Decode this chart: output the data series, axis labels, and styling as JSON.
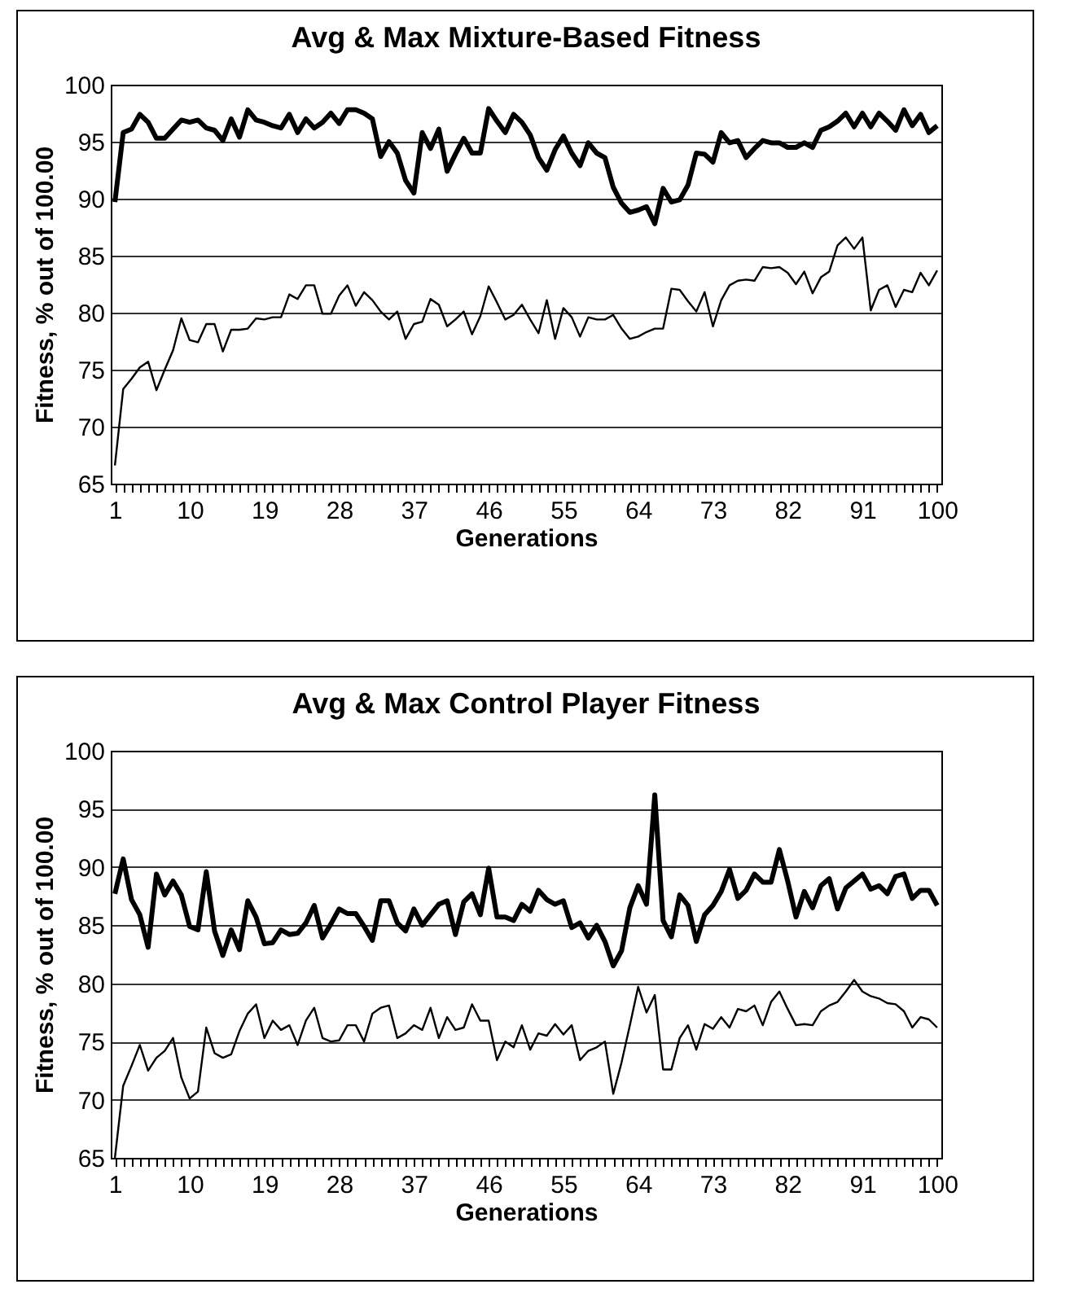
{
  "chart_data": [
    {
      "type": "line",
      "title": "Avg & Max Mixture-Based Fitness",
      "xlabel": "Generations",
      "ylabel": "Fitness, % out of 100.00",
      "categories": [
        "1",
        null,
        null,
        null,
        null,
        null,
        null,
        null,
        null,
        "10",
        null,
        null,
        null,
        null,
        null,
        null,
        null,
        null,
        "19",
        null,
        null,
        null,
        null,
        null,
        null,
        null,
        null,
        "28",
        null,
        null,
        null,
        null,
        null,
        null,
        null,
        null,
        "37",
        null,
        null,
        null,
        null,
        null,
        null,
        null,
        null,
        "46",
        null,
        null,
        null,
        null,
        null,
        null,
        null,
        null,
        "55",
        null,
        null,
        null,
        null,
        null,
        null,
        null,
        null,
        "64",
        null,
        null,
        null,
        null,
        null,
        null,
        null,
        null,
        "73",
        null,
        null,
        null,
        null,
        null,
        null,
        null,
        null,
        "82",
        null,
        null,
        null,
        null,
        null,
        null,
        null,
        null,
        "91",
        null,
        null,
        null,
        null,
        null,
        null,
        null,
        null,
        "100"
      ],
      "ylim": [
        65,
        100
      ],
      "yticks": [
        65,
        70,
        75,
        80,
        85,
        90,
        95,
        100
      ],
      "grid": "y",
      "legend": false,
      "line_style": "solid",
      "marker": "none",
      "series": [
        {
          "color": "#000000",
          "values": [
            89.7,
            95.8,
            96.1,
            97.4,
            96.7,
            95.3,
            95.3,
            96.1,
            96.9,
            96.7,
            96.9,
            96.2,
            96.0,
            95.1,
            97.0,
            95.4,
            97.8,
            96.9,
            96.7,
            96.4,
            96.2,
            97.4,
            95.8,
            97.0,
            96.2,
            96.7,
            97.5,
            96.6,
            97.8,
            97.8,
            97.5,
            97.0,
            93.7,
            95.0,
            94.0,
            91.6,
            90.5,
            95.8,
            94.4,
            96.1,
            92.4,
            93.9,
            95.3,
            94.0,
            94.0,
            97.9,
            96.8,
            95.8,
            97.4,
            96.7,
            95.6,
            93.6,
            92.5,
            94.3,
            95.5,
            94.0,
            92.9,
            94.9,
            94.0,
            93.6,
            91.0,
            89.6,
            88.8,
            89.0,
            89.3,
            87.8,
            90.9,
            89.7,
            89.9,
            91.2,
            94.0,
            93.9,
            93.2,
            95.8,
            94.9,
            95.1,
            93.6,
            94.4,
            95.1,
            94.9,
            94.9,
            94.5,
            94.5,
            94.9,
            94.5,
            96.0,
            96.3,
            96.8,
            97.5,
            96.3,
            97.5,
            96.3,
            97.5,
            96.8,
            96.0,
            97.8,
            96.4,
            97.4,
            95.8,
            96.4
          ]
        },
        {
          "color": "#000000",
          "values": [
            66.6,
            73.3,
            74.2,
            75.2,
            75.7,
            73.2,
            75.0,
            76.7,
            79.5,
            77.6,
            77.4,
            79.0,
            79.0,
            76.6,
            78.5,
            78.5,
            78.6,
            79.5,
            79.4,
            79.6,
            79.6,
            81.6,
            81.2,
            82.4,
            82.4,
            79.9,
            79.9,
            81.5,
            82.4,
            80.6,
            81.8,
            81.1,
            80.1,
            79.4,
            80.1,
            77.7,
            79.0,
            79.2,
            81.2,
            80.7,
            78.8,
            79.4,
            80.1,
            78.1,
            79.7,
            82.3,
            80.9,
            79.4,
            79.8,
            80.7,
            79.4,
            78.2,
            81.1,
            77.7,
            80.4,
            79.6,
            77.9,
            79.6,
            79.4,
            79.4,
            79.8,
            78.6,
            77.7,
            77.9,
            78.3,
            78.6,
            78.6,
            82.1,
            82.0,
            81.0,
            80.1,
            81.8,
            78.8,
            81.1,
            82.4,
            82.8,
            82.9,
            82.8,
            84.0,
            83.9,
            84.0,
            83.5,
            82.5,
            83.6,
            81.7,
            83.1,
            83.6,
            85.9,
            86.6,
            85.6,
            86.6,
            80.2,
            82.0,
            82.4,
            80.5,
            82.0,
            81.8,
            83.5,
            82.4,
            83.7
          ]
        }
      ]
    },
    {
      "type": "line",
      "title": "Avg & Max Control Player Fitness",
      "xlabel": "Generations",
      "ylabel": "Fitness, % out of 100.00",
      "categories": [
        "1",
        null,
        null,
        null,
        null,
        null,
        null,
        null,
        null,
        "10",
        null,
        null,
        null,
        null,
        null,
        null,
        null,
        null,
        "19",
        null,
        null,
        null,
        null,
        null,
        null,
        null,
        null,
        "28",
        null,
        null,
        null,
        null,
        null,
        null,
        null,
        null,
        "37",
        null,
        null,
        null,
        null,
        null,
        null,
        null,
        null,
        "46",
        null,
        null,
        null,
        null,
        null,
        null,
        null,
        null,
        "55",
        null,
        null,
        null,
        null,
        null,
        null,
        null,
        null,
        "64",
        null,
        null,
        null,
        null,
        null,
        null,
        null,
        null,
        "73",
        null,
        null,
        null,
        null,
        null,
        null,
        null,
        null,
        "82",
        null,
        null,
        null,
        null,
        null,
        null,
        null,
        null,
        "91",
        null,
        null,
        null,
        null,
        null,
        null,
        null,
        null,
        "100"
      ],
      "ylim": [
        65,
        100
      ],
      "yticks": [
        65,
        70,
        75,
        80,
        85,
        90,
        95,
        100
      ],
      "grid": "y",
      "legend": false,
      "line_style": "solid",
      "marker": "none",
      "series": [
        {
          "color": "#000000",
          "values": [
            87.7,
            90.7,
            87.2,
            85.9,
            83.1,
            89.4,
            87.6,
            88.8,
            87.6,
            84.9,
            84.6,
            89.6,
            84.5,
            82.4,
            84.6,
            82.9,
            87.1,
            85.7,
            83.4,
            83.5,
            84.6,
            84.2,
            84.3,
            85.2,
            86.7,
            83.9,
            85.1,
            86.4,
            86.0,
            86.0,
            84.9,
            83.7,
            87.1,
            87.1,
            85.2,
            84.5,
            86.4,
            85.0,
            85.9,
            86.8,
            87.1,
            84.2,
            87.0,
            87.7,
            85.9,
            89.9,
            85.7,
            85.7,
            85.4,
            86.8,
            86.2,
            88.0,
            87.2,
            86.8,
            87.1,
            84.8,
            85.2,
            83.9,
            85.0,
            83.6,
            81.5,
            82.8,
            86.5,
            88.4,
            86.8,
            96.2,
            85.4,
            84.0,
            87.6,
            86.7,
            83.6,
            85.9,
            86.7,
            87.9,
            89.8,
            87.3,
            88.0,
            89.4,
            88.7,
            88.7,
            91.5,
            88.8,
            85.7,
            87.9,
            86.5,
            88.4,
            89.0,
            86.4,
            88.2,
            88.8,
            89.4,
            88.1,
            88.4,
            87.7,
            89.2,
            89.4,
            87.3,
            88.0,
            88.0,
            86.7
          ]
        },
        {
          "color": "#000000",
          "values": [
            65.0,
            71.2,
            72.9,
            74.7,
            72.5,
            73.6,
            74.2,
            75.3,
            71.9,
            70.1,
            70.7,
            76.2,
            74.0,
            73.6,
            73.9,
            75.9,
            77.4,
            78.2,
            75.3,
            76.8,
            76.0,
            76.4,
            74.7,
            76.8,
            77.9,
            75.3,
            75.0,
            75.1,
            76.4,
            76.4,
            75.0,
            77.4,
            77.9,
            78.1,
            75.3,
            75.7,
            76.4,
            76.0,
            77.9,
            75.3,
            77.1,
            76.0,
            76.2,
            78.2,
            76.8,
            76.8,
            73.4,
            75.0,
            74.5,
            76.4,
            74.3,
            75.7,
            75.5,
            76.5,
            75.6,
            76.4,
            73.4,
            74.2,
            74.5,
            75.0,
            70.5,
            73.2,
            76.4,
            79.7,
            77.5,
            79.0,
            72.6,
            72.6,
            75.3,
            76.4,
            74.3,
            76.5,
            76.1,
            77.1,
            76.2,
            77.8,
            77.6,
            78.1,
            76.4,
            78.4,
            79.3,
            77.8,
            76.4,
            76.5,
            76.4,
            77.6,
            78.1,
            78.4,
            79.3,
            80.3,
            79.3,
            78.9,
            78.7,
            78.3,
            78.2,
            77.6,
            76.2,
            77.1,
            76.9,
            76.2
          ]
        }
      ]
    }
  ]
}
